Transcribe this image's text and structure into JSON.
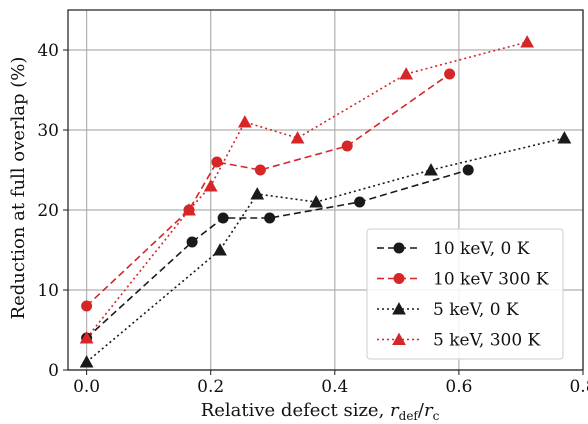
{
  "chart_data": {
    "type": "line",
    "xlabel": "Relative defect size, r_def/r_c",
    "xlabel_parts": {
      "prefix": "Relative defect size, ",
      "var1": "r",
      "sub1": "def",
      "slash": "/",
      "var2": "r",
      "sub2": "c"
    },
    "ylabel": "Reduction at full overlap (%)",
    "xlim": [
      -0.03,
      0.8
    ],
    "ylim": [
      0,
      45
    ],
    "xticks": [
      0.0,
      0.2,
      0.4,
      0.6,
      0.8
    ],
    "xtick_labels": [
      "0.0",
      "0.2",
      "0.4",
      "0.6",
      "0.8"
    ],
    "yticks": [
      0,
      10,
      20,
      30,
      40
    ],
    "ytick_labels": [
      "0",
      "10",
      "20",
      "30",
      "40"
    ],
    "grid": true,
    "legend_position": "lower-right",
    "series": [
      {
        "name": "10 keV, 0 K",
        "color": "#1a1a1a",
        "marker": "circle",
        "linestyle": "dashed",
        "x": [
          0.0,
          0.17,
          0.22,
          0.295,
          0.44,
          0.615
        ],
        "y": [
          4,
          16,
          19,
          19,
          21,
          25
        ]
      },
      {
        "name": "10 keV 300 K",
        "color": "#d62728",
        "marker": "circle",
        "linestyle": "dashed",
        "x": [
          0.0,
          0.165,
          0.21,
          0.28,
          0.42,
          0.585
        ],
        "y": [
          8,
          20,
          26,
          25,
          28,
          37
        ]
      },
      {
        "name": "5 keV, 0 K",
        "color": "#1a1a1a",
        "marker": "triangle",
        "linestyle": "dotted",
        "x": [
          0.0,
          0.215,
          0.275,
          0.37,
          0.555,
          0.77
        ],
        "y": [
          1,
          15,
          22,
          21,
          25,
          29
        ]
      },
      {
        "name": "5 keV, 300 K",
        "color": "#d62728",
        "marker": "triangle",
        "linestyle": "dotted",
        "x": [
          0.0,
          0.165,
          0.2,
          0.255,
          0.34,
          0.515,
          0.71
        ],
        "y": [
          4,
          20,
          23,
          31,
          29,
          37,
          41
        ]
      }
    ]
  }
}
